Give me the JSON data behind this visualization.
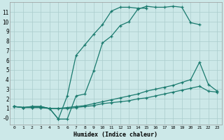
{
  "title": "",
  "xlabel": "Humidex (Indice chaleur)",
  "bg_color": "#cce8e8",
  "grid_color": "#aacccc",
  "line_color": "#1a7a6e",
  "xticks": [
    0,
    1,
    2,
    3,
    4,
    5,
    6,
    7,
    8,
    9,
    10,
    11,
    12,
    13,
    14,
    15,
    16,
    17,
    18,
    19,
    20,
    21,
    22,
    23
  ],
  "yticks": [
    0,
    1,
    2,
    3,
    4,
    5,
    6,
    7,
    8,
    9,
    10,
    11
  ],
  "ytick_labels": [
    "-0",
    "1",
    "2",
    "3",
    "4",
    "5",
    "6",
    "7",
    "8",
    "9",
    "10",
    "11"
  ],
  "line1_x": [
    0,
    1,
    2,
    3,
    4,
    5,
    6,
    7,
    8,
    9,
    10,
    11,
    12,
    13,
    14,
    15,
    16,
    17,
    18,
    19,
    20,
    21
  ],
  "line1_y": [
    1.2,
    1.1,
    1.2,
    1.2,
    1.0,
    -0.1,
    -0.1,
    2.3,
    2.5,
    4.9,
    7.8,
    8.5,
    9.6,
    10.0,
    11.3,
    11.6,
    11.5,
    11.5,
    11.6,
    11.5,
    9.9,
    9.7
  ],
  "line2_x": [
    0,
    1,
    2,
    3,
    4,
    5,
    6,
    7,
    8,
    9,
    10,
    11,
    12,
    13,
    14,
    15
  ],
  "line2_y": [
    1.2,
    1.1,
    1.2,
    1.2,
    1.0,
    -0.1,
    2.3,
    6.5,
    7.6,
    8.7,
    9.7,
    11.1,
    11.5,
    11.5,
    11.4,
    11.4
  ],
  "line3_x": [
    0,
    1,
    2,
    3,
    4,
    5,
    6,
    7,
    8,
    9,
    10,
    11,
    12,
    13,
    14,
    15,
    16,
    17,
    18,
    19,
    20,
    21,
    22,
    23
  ],
  "line3_y": [
    1.2,
    1.1,
    1.1,
    1.1,
    1.0,
    1.0,
    1.1,
    1.2,
    1.3,
    1.5,
    1.7,
    1.9,
    2.1,
    2.3,
    2.5,
    2.8,
    3.0,
    3.2,
    3.4,
    3.7,
    4.0,
    5.8,
    3.5,
    2.8
  ],
  "line4_x": [
    0,
    1,
    2,
    3,
    4,
    5,
    6,
    7,
    8,
    9,
    10,
    11,
    12,
    13,
    14,
    15,
    16,
    17,
    18,
    19,
    20,
    21,
    22,
    23
  ],
  "line4_y": [
    1.2,
    1.1,
    1.1,
    1.1,
    1.0,
    1.0,
    1.0,
    1.1,
    1.2,
    1.3,
    1.5,
    1.6,
    1.7,
    1.8,
    2.0,
    2.1,
    2.3,
    2.5,
    2.7,
    2.9,
    3.1,
    3.3,
    2.8,
    2.7
  ]
}
